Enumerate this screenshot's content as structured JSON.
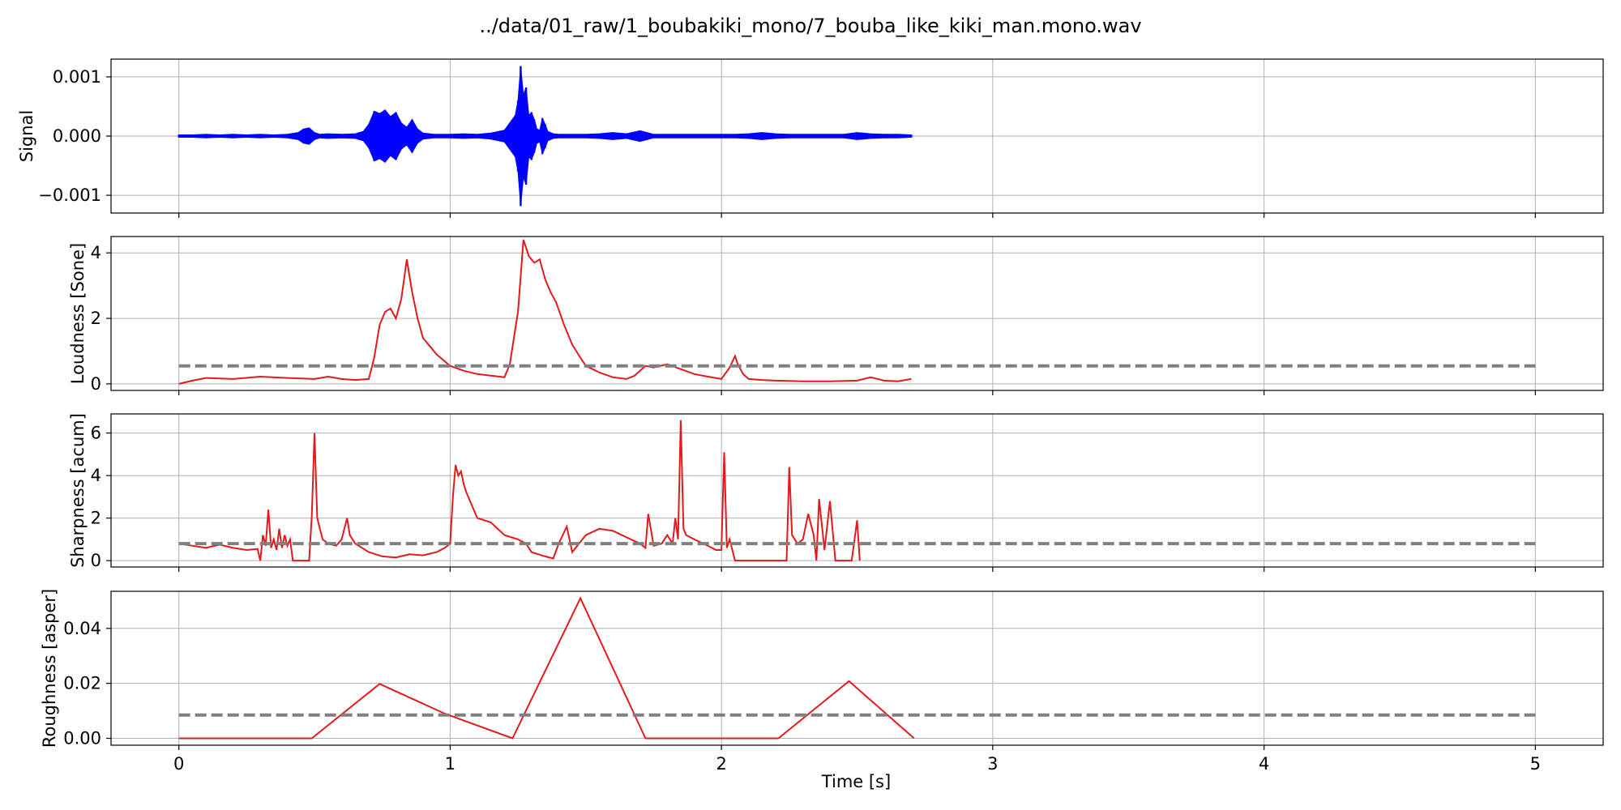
{
  "figure_title": "../data/01_raw/1_boubakiki_mono/7_bouba_like_kiki_man.mono.wav",
  "colors": {
    "signal": "#0000ff",
    "metric": "#e31a1c",
    "mean": "#808080",
    "grid": "#b0b0b0",
    "frame": "#000000"
  },
  "chart_data": [
    {
      "type": "line",
      "name": "signal",
      "ylabel": "Signal",
      "xlabel": "",
      "xlim": [
        -0.25,
        5.25
      ],
      "ylim": [
        -0.0013,
        0.0013
      ],
      "xticks": [
        0,
        1,
        2,
        3,
        4,
        5
      ],
      "xtick_labels": [],
      "yticks": [
        -0.001,
        0,
        0.001
      ],
      "ytick_labels": [
        "−0.001",
        "0.000",
        "0.001"
      ],
      "grid": true,
      "series": [
        {
          "style": "envelope",
          "color_key": "signal",
          "x": [
            0.0,
            0.05,
            0.1,
            0.15,
            0.2,
            0.25,
            0.3,
            0.35,
            0.4,
            0.44,
            0.46,
            0.48,
            0.5,
            0.52,
            0.55,
            0.6,
            0.65,
            0.68,
            0.7,
            0.72,
            0.74,
            0.76,
            0.78,
            0.8,
            0.82,
            0.84,
            0.86,
            0.88,
            0.9,
            0.94,
            1.0,
            1.05,
            1.1,
            1.15,
            1.2,
            1.24,
            1.25,
            1.26,
            1.27,
            1.28,
            1.29,
            1.3,
            1.31,
            1.32,
            1.33,
            1.34,
            1.35,
            1.36,
            1.38,
            1.4,
            1.45,
            1.5,
            1.55,
            1.6,
            1.65,
            1.7,
            1.75,
            1.8,
            1.85,
            1.9,
            1.95,
            2.0,
            2.05,
            2.1,
            2.15,
            2.2,
            2.25,
            2.3,
            2.35,
            2.4,
            2.45,
            2.5,
            2.55,
            2.6,
            2.65,
            2.7
          ],
          "amplitude": [
            2e-05,
            2e-05,
            3e-05,
            2e-05,
            3e-05,
            2e-05,
            3e-05,
            2e-05,
            3e-05,
            6e-05,
            0.00012,
            0.00014,
            6e-05,
            3e-05,
            4e-05,
            3e-05,
            4e-05,
            8e-05,
            0.0002,
            0.00042,
            0.00038,
            0.00044,
            0.00033,
            0.0004,
            0.00022,
            0.00015,
            0.00028,
            0.00012,
            5e-05,
            3e-05,
            3e-05,
            4e-05,
            3e-05,
            5e-05,
            0.0001,
            0.00035,
            0.0006,
            0.00118,
            0.0007,
            0.00082,
            0.00035,
            0.0004,
            0.00028,
            0.00012,
            0.0001,
            0.0003,
            0.0002,
            8e-05,
            4e-05,
            3e-05,
            3e-05,
            3e-05,
            4e-05,
            6e-05,
            4e-05,
            9e-05,
            3e-05,
            3e-05,
            3e-05,
            3e-05,
            3e-05,
            3e-05,
            3e-05,
            4e-05,
            6e-05,
            4e-05,
            3e-05,
            3e-05,
            3e-05,
            3e-05,
            3e-05,
            6e-05,
            4e-05,
            3e-05,
            3e-05,
            2e-05
          ]
        }
      ]
    },
    {
      "type": "line",
      "name": "loudness",
      "ylabel": "Loudness [Sone]",
      "xlabel": "",
      "xlim": [
        -0.25,
        5.25
      ],
      "ylim": [
        -0.2,
        4.5
      ],
      "xticks": [
        0,
        1,
        2,
        3,
        4,
        5
      ],
      "xtick_labels": [],
      "yticks": [
        0,
        2,
        4
      ],
      "ytick_labels": [
        "0",
        "2",
        "4"
      ],
      "grid": true,
      "series": [
        {
          "style": "line",
          "color_key": "metric",
          "x": [
            0.0,
            0.05,
            0.1,
            0.2,
            0.3,
            0.4,
            0.5,
            0.55,
            0.6,
            0.65,
            0.7,
            0.72,
            0.74,
            0.76,
            0.78,
            0.8,
            0.82,
            0.84,
            0.86,
            0.88,
            0.9,
            0.95,
            1.0,
            1.05,
            1.1,
            1.15,
            1.2,
            1.22,
            1.25,
            1.27,
            1.29,
            1.31,
            1.33,
            1.35,
            1.37,
            1.39,
            1.42,
            1.45,
            1.48,
            1.5,
            1.55,
            1.6,
            1.65,
            1.68,
            1.72,
            1.75,
            1.8,
            1.85,
            1.9,
            1.95,
            2.0,
            2.03,
            2.05,
            2.06,
            2.08,
            2.1,
            2.15,
            2.2,
            2.3,
            2.4,
            2.5,
            2.55,
            2.6,
            2.65,
            2.7
          ],
          "y": [
            0.0,
            0.1,
            0.18,
            0.15,
            0.22,
            0.18,
            0.15,
            0.22,
            0.15,
            0.12,
            0.15,
            0.8,
            1.8,
            2.2,
            2.3,
            2.0,
            2.6,
            3.8,
            2.8,
            2.0,
            1.4,
            0.9,
            0.55,
            0.4,
            0.3,
            0.25,
            0.2,
            0.6,
            2.2,
            4.4,
            3.9,
            3.7,
            3.8,
            3.2,
            2.8,
            2.5,
            1.8,
            1.2,
            0.8,
            0.55,
            0.35,
            0.2,
            0.15,
            0.25,
            0.55,
            0.5,
            0.6,
            0.45,
            0.3,
            0.22,
            0.15,
            0.5,
            0.85,
            0.6,
            0.3,
            0.15,
            0.12,
            0.1,
            0.08,
            0.08,
            0.1,
            0.2,
            0.1,
            0.08,
            0.15
          ]
        },
        {
          "style": "dashed",
          "color_key": "mean",
          "x": [
            0,
            5
          ],
          "y": [
            0.55,
            0.55
          ]
        }
      ]
    },
    {
      "type": "line",
      "name": "sharpness",
      "ylabel": "Sharpness [acum]",
      "xlabel": "",
      "xlim": [
        -0.25,
        5.25
      ],
      "ylim": [
        -0.3,
        6.9
      ],
      "xticks": [
        0,
        1,
        2,
        3,
        4,
        5
      ],
      "xtick_labels": [],
      "yticks": [
        0,
        2,
        4,
        6
      ],
      "ytick_labels": [
        "0",
        "2",
        "4",
        "6"
      ],
      "grid": true,
      "series": [
        {
          "style": "line",
          "color_key": "metric",
          "x": [
            0.0,
            0.05,
            0.1,
            0.15,
            0.2,
            0.25,
            0.29,
            0.3,
            0.31,
            0.32,
            0.33,
            0.34,
            0.35,
            0.36,
            0.37,
            0.38,
            0.39,
            0.4,
            0.41,
            0.42,
            0.44,
            0.45,
            0.46,
            0.48,
            0.49,
            0.5,
            0.51,
            0.52,
            0.53,
            0.55,
            0.58,
            0.6,
            0.62,
            0.63,
            0.65,
            0.7,
            0.75,
            0.8,
            0.85,
            0.9,
            0.95,
            0.98,
            1.0,
            1.01,
            1.02,
            1.03,
            1.04,
            1.05,
            1.06,
            1.08,
            1.1,
            1.15,
            1.2,
            1.25,
            1.28,
            1.3,
            1.35,
            1.38,
            1.4,
            1.43,
            1.45,
            1.5,
            1.55,
            1.6,
            1.65,
            1.7,
            1.72,
            1.73,
            1.75,
            1.78,
            1.8,
            1.82,
            1.83,
            1.84,
            1.85,
            1.86,
            1.87,
            1.9,
            1.95,
            1.98,
            2.0,
            2.01,
            2.02,
            2.03,
            2.05,
            2.07,
            2.1,
            2.15,
            2.2,
            2.24,
            2.25,
            2.26,
            2.28,
            2.3,
            2.32,
            2.34,
            2.35,
            2.36,
            2.38,
            2.4,
            2.42,
            2.43,
            2.44,
            2.45,
            2.48,
            2.5,
            2.51
          ],
          "y": [
            0.8,
            0.7,
            0.6,
            0.75,
            0.6,
            0.5,
            0.55,
            0.0,
            1.2,
            0.7,
            2.4,
            0.6,
            1.0,
            0.5,
            1.5,
            0.6,
            1.2,
            0.7,
            1.0,
            0.0,
            0.0,
            0.0,
            0.0,
            0.0,
            2.1,
            6.0,
            2.0,
            1.5,
            1.0,
            0.8,
            0.7,
            1.0,
            2.0,
            1.2,
            0.8,
            0.4,
            0.2,
            0.15,
            0.3,
            0.25,
            0.4,
            0.6,
            0.8,
            3.0,
            4.5,
            4.0,
            4.2,
            3.6,
            3.2,
            2.6,
            2.0,
            1.8,
            1.2,
            1.0,
            0.8,
            0.4,
            0.2,
            0.1,
            0.8,
            1.6,
            0.4,
            1.2,
            1.5,
            1.4,
            1.1,
            0.8,
            0.6,
            2.2,
            0.7,
            0.8,
            1.2,
            0.8,
            2.0,
            1.0,
            6.6,
            1.5,
            1.2,
            1.0,
            0.7,
            0.5,
            0.5,
            5.1,
            0.6,
            1.0,
            0.0,
            0.0,
            0.0,
            0.0,
            0.0,
            0.0,
            4.4,
            1.2,
            0.8,
            1.0,
            2.2,
            1.2,
            0.0,
            2.9,
            0.5,
            2.8,
            0.0,
            0.0,
            0.0,
            0.0,
            0.0,
            1.9,
            0.0
          ]
        },
        {
          "style": "dashed",
          "color_key": "mean",
          "x": [
            0,
            5
          ],
          "y": [
            0.8,
            0.8
          ]
        }
      ]
    },
    {
      "type": "line",
      "name": "roughness",
      "ylabel": "Roughness [asper]",
      "xlabel": "Time [s]",
      "xlim": [
        -0.25,
        5.25
      ],
      "ylim": [
        -0.0025,
        0.0535
      ],
      "xticks": [
        0,
        1,
        2,
        3,
        4,
        5
      ],
      "xtick_labels": [
        "0",
        "1",
        "2",
        "3",
        "4",
        "5"
      ],
      "yticks": [
        0,
        0.02,
        0.04
      ],
      "ytick_labels": [
        "0.00",
        "0.02",
        "0.04"
      ],
      "grid": true,
      "series": [
        {
          "style": "line",
          "color_key": "metric",
          "x": [
            0.0,
            0.49,
            0.74,
            0.98,
            1.23,
            1.48,
            1.72,
            1.97,
            2.21,
            2.47,
            2.71
          ],
          "y": [
            0.0,
            0.0,
            0.0198,
            0.009,
            0.0,
            0.051,
            0.0,
            0.0,
            0.0,
            0.0208,
            0.0
          ]
        },
        {
          "style": "dashed",
          "color_key": "mean",
          "x": [
            0,
            5
          ],
          "y": [
            0.0085,
            0.0085
          ]
        }
      ]
    }
  ]
}
